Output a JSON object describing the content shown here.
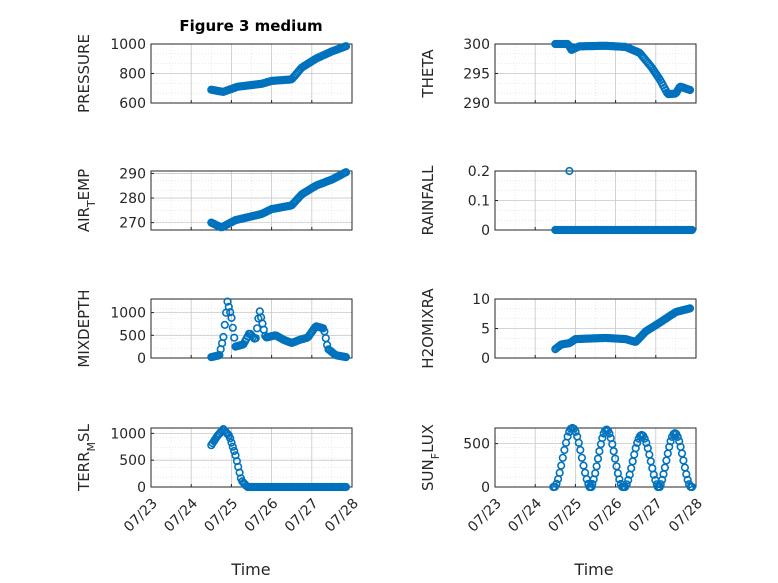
{
  "figure": {
    "title": "Figure 3 medium",
    "xlabel": "Time",
    "marker_color": "#0072bd",
    "axes_color": "#262626",
    "grid_color": "#d9d9d9"
  },
  "chart_data": [
    {
      "type": "scatter",
      "ylabel": "PRESSURE",
      "ylim": [
        600,
        1000
      ],
      "yticks": [
        "600",
        "800",
        "1000"
      ],
      "yticks_values": [
        600,
        800,
        1000
      ],
      "x_range": [
        "07/23",
        "07/28"
      ],
      "grid": true,
      "anchors": [
        [
          0.3,
          690
        ],
        [
          0.36,
          675
        ],
        [
          0.43,
          710
        ],
        [
          0.55,
          730
        ],
        [
          0.6,
          750
        ],
        [
          0.7,
          760
        ],
        [
          0.75,
          840
        ],
        [
          0.82,
          900
        ],
        [
          0.9,
          950
        ],
        [
          0.97,
          985
        ]
      ]
    },
    {
      "type": "scatter",
      "ylabel": "THETA",
      "ylim": [
        290,
        300
      ],
      "yticks": [
        "290",
        "295",
        "300"
      ],
      "yticks_values": [
        290,
        295,
        300
      ],
      "x_range": [
        "07/23",
        "07/28"
      ],
      "grid": true,
      "anchors": [
        [
          0.3,
          300.1
        ],
        [
          0.36,
          300.2
        ],
        [
          0.38,
          299.0
        ],
        [
          0.42,
          299.6
        ],
        [
          0.55,
          299.7
        ],
        [
          0.65,
          299.5
        ],
        [
          0.72,
          298.5
        ],
        [
          0.78,
          296.0
        ],
        [
          0.82,
          294.0
        ],
        [
          0.86,
          291.5
        ],
        [
          0.9,
          291.6
        ],
        [
          0.92,
          292.8
        ],
        [
          0.97,
          292.2
        ]
      ]
    },
    {
      "type": "scatter",
      "ylabel": "AIR_T EMP",
      "ylabel_parts": [
        "AIR",
        "T",
        "EMP"
      ],
      "ylim": [
        267,
        291
      ],
      "yticks": [
        "270",
        "280",
        "290"
      ],
      "yticks_values": [
        270,
        280,
        290
      ],
      "x_range": [
        "07/23",
        "07/28"
      ],
      "grid": true,
      "anchors": [
        [
          0.3,
          270.0
        ],
        [
          0.35,
          268.0
        ],
        [
          0.42,
          271.0
        ],
        [
          0.55,
          273.5
        ],
        [
          0.6,
          275.5
        ],
        [
          0.7,
          277.0
        ],
        [
          0.75,
          281.5
        ],
        [
          0.82,
          285.0
        ],
        [
          0.9,
          287.5
        ],
        [
          0.97,
          290.5
        ]
      ]
    },
    {
      "type": "scatter",
      "ylabel": "RAINFALL",
      "ylim": [
        0,
        0.2
      ],
      "yticks": [
        "0",
        "0.1",
        "0.2"
      ],
      "yticks_values": [
        0,
        0.1,
        0.2
      ],
      "x_range": [
        "07/23",
        "07/28"
      ],
      "grid": true,
      "anchors": [
        [
          0.3,
          0
        ],
        [
          0.98,
          0
        ]
      ],
      "outliers": [
        [
          0.37,
          0.2
        ]
      ]
    },
    {
      "type": "scatter",
      "ylabel": "MIXDEPTH",
      "ylim": [
        0,
        1300
      ],
      "yticks": [
        "0",
        "500",
        "1000"
      ],
      "yticks_values": [
        0,
        500,
        1000
      ],
      "x_range": [
        "07/23",
        "07/28"
      ],
      "grid": true,
      "anchors": [
        [
          0.3,
          20
        ],
        [
          0.34,
          60
        ],
        [
          0.36,
          450
        ],
        [
          0.38,
          1250
        ],
        [
          0.4,
          900
        ],
        [
          0.42,
          250
        ],
        [
          0.46,
          300
        ],
        [
          0.49,
          550
        ],
        [
          0.52,
          400
        ],
        [
          0.54,
          1050
        ],
        [
          0.57,
          450
        ],
        [
          0.62,
          500
        ],
        [
          0.66,
          400
        ],
        [
          0.7,
          330
        ],
        [
          0.74,
          400
        ],
        [
          0.78,
          450
        ],
        [
          0.82,
          700
        ],
        [
          0.86,
          650
        ],
        [
          0.88,
          200
        ],
        [
          0.92,
          60
        ],
        [
          0.97,
          20
        ]
      ]
    },
    {
      "type": "scatter",
      "ylabel": "H2OMIXRA",
      "ylim": [
        0,
        10
      ],
      "yticks": [
        "0",
        "5",
        "10"
      ],
      "yticks_values": [
        0,
        5,
        10
      ],
      "x_range": [
        "07/23",
        "07/28"
      ],
      "grid": true,
      "anchors": [
        [
          0.3,
          1.5
        ],
        [
          0.33,
          2.3
        ],
        [
          0.37,
          2.5
        ],
        [
          0.4,
          3.2
        ],
        [
          0.55,
          3.4
        ],
        [
          0.65,
          3.2
        ],
        [
          0.7,
          2.7
        ],
        [
          0.75,
          4.5
        ],
        [
          0.82,
          6.0
        ],
        [
          0.9,
          7.8
        ],
        [
          0.97,
          8.4
        ]
      ]
    },
    {
      "type": "scatter",
      "ylabel": "TERR_M SL",
      "ylabel_parts": [
        "TERR",
        "M",
        "SL"
      ],
      "ylim": [
        0,
        1100
      ],
      "yticks": [
        "0",
        "500",
        "1000"
      ],
      "yticks_values": [
        0,
        500,
        1000
      ],
      "x_range": [
        "07/23",
        "07/28"
      ],
      "grid": true,
      "anchors": [
        [
          0.3,
          780
        ],
        [
          0.33,
          950
        ],
        [
          0.36,
          1080
        ],
        [
          0.39,
          950
        ],
        [
          0.42,
          600
        ],
        [
          0.45,
          120
        ],
        [
          0.48,
          0
        ],
        [
          0.97,
          0
        ]
      ]
    },
    {
      "type": "scatter",
      "ylabel": "SUN_F LUX",
      "ylabel_parts": [
        "SUN",
        "F",
        "LUX"
      ],
      "ylim": [
        0,
        680
      ],
      "yticks": [
        "0",
        "500"
      ],
      "yticks_values": [
        0,
        500
      ],
      "x_range": [
        "07/23",
        "07/28"
      ],
      "grid": true,
      "arches": [
        [
          0.29,
          0.48,
          660
        ],
        [
          0.47,
          0.64,
          640
        ],
        [
          0.64,
          0.82,
          580
        ],
        [
          0.81,
          0.98,
          600
        ]
      ]
    }
  ],
  "x_tick_labels": [
    "07/23",
    "07/24",
    "07/25",
    "07/26",
    "07/27",
    "07/28"
  ]
}
